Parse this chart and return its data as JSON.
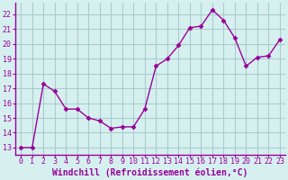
{
  "x": [
    0,
    1,
    2,
    3,
    4,
    5,
    6,
    7,
    8,
    9,
    10,
    11,
    12,
    13,
    14,
    15,
    16,
    17,
    18,
    19,
    20,
    21,
    22,
    23
  ],
  "y": [
    13.0,
    13.0,
    17.3,
    16.8,
    15.6,
    15.6,
    15.0,
    14.8,
    14.3,
    14.4,
    14.4,
    15.6,
    18.5,
    19.0,
    19.9,
    21.1,
    21.2,
    22.3,
    21.6,
    20.4,
    18.5,
    19.1,
    19.2,
    20.3
  ],
  "line_color": "#990099",
  "marker": "D",
  "marker_size": 2.5,
  "line_width": 1.0,
  "bg_color": "#d6f0f0",
  "grid_color": "#aacccc",
  "xlabel": "Windchill (Refroidissement éolien,°C)",
  "xlabel_fontsize": 7,
  "tick_fontsize": 6,
  "ylim": [
    12.5,
    22.8
  ],
  "xlim": [
    -0.5,
    23.5
  ],
  "yticks": [
    13,
    14,
    15,
    16,
    17,
    18,
    19,
    20,
    21,
    22
  ],
  "xticks": [
    0,
    1,
    2,
    3,
    4,
    5,
    6,
    7,
    8,
    9,
    10,
    11,
    12,
    13,
    14,
    15,
    16,
    17,
    18,
    19,
    20,
    21,
    22,
    23
  ]
}
